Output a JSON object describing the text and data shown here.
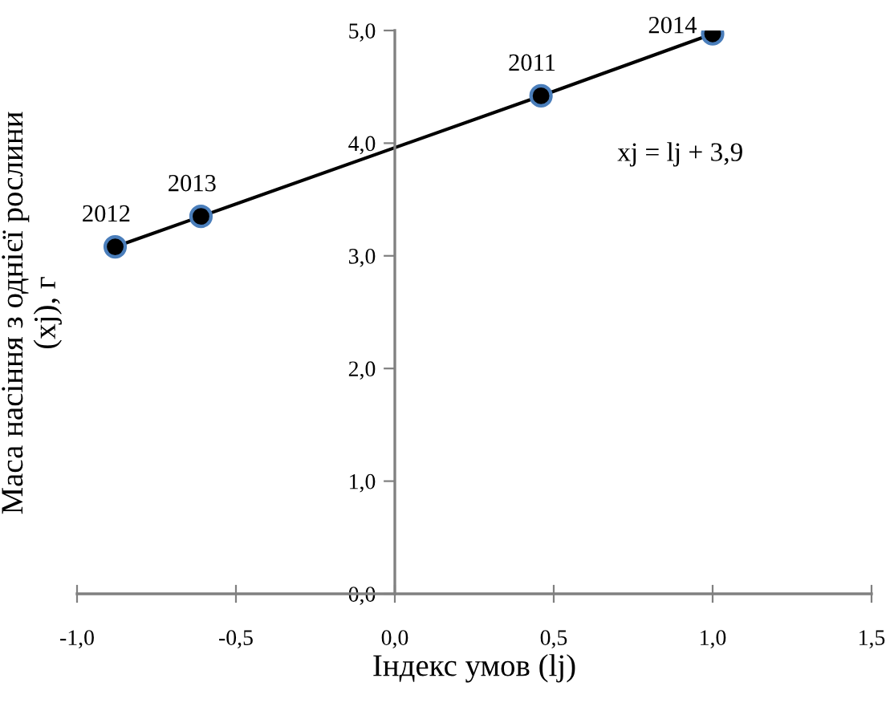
{
  "chart_data": {
    "type": "line",
    "xlabel": "Індекс умов (lj)",
    "ylabel": "Маса насіння з однієї рослини\n(xj), г",
    "x": [
      -0.88,
      -0.61,
      0.46,
      1.0
    ],
    "series": [
      {
        "color": "#000000",
        "values": [
          3.08,
          3.35,
          4.42,
          4.97
        ]
      }
    ],
    "marker": "circle",
    "line_style": "solid",
    "xlim": [
      -1.0,
      1.5
    ],
    "ylim": [
      0,
      5.0
    ],
    "xticks": [
      {
        "value": -1.0,
        "label": "-1,0"
      },
      {
        "value": -0.5,
        "label": "-0,5"
      },
      {
        "value": 0,
        "label": "0,0"
      },
      {
        "value": 0.5,
        "label": "0,5"
      },
      {
        "value": 1.0,
        "label": "1,0"
      },
      {
        "value": 1.5,
        "label": "1,5"
      }
    ],
    "yticks": [
      {
        "value": 0,
        "label": "0,0"
      },
      {
        "value": 1.0,
        "label": "1,0"
      },
      {
        "value": 2.0,
        "label": "2,0"
      },
      {
        "value": 3.0,
        "label": "3,0"
      },
      {
        "value": 4.0,
        "label": "4,0"
      },
      {
        "value": 5.0,
        "label": "5,0"
      }
    ],
    "annotations": [
      {
        "text": "2012",
        "x": -0.88,
        "y": 3.08
      },
      {
        "text": "2013",
        "x": -0.61,
        "y": 3.35
      },
      {
        "text": "2011",
        "x": 0.46,
        "y": 4.42
      },
      {
        "text": "2014",
        "x": 1.0,
        "y": 4.97
      },
      "xj = lj + 3,9"
    ],
    "grid": false,
    "legend": false
  }
}
